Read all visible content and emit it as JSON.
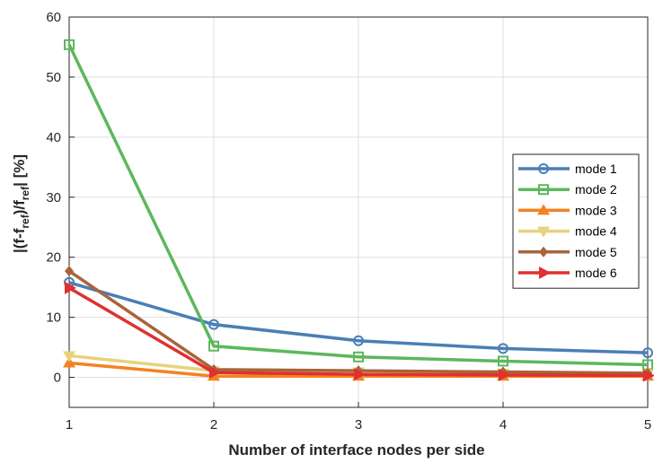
{
  "chart_data": {
    "type": "line",
    "title": "",
    "xlabel": "Number of interface nodes per side",
    "ylabel": "|(f-f_ref)/f_ref| [%]",
    "ylabel_parts": {
      "p1": "|(f-f",
      "s1": "ref",
      "p2": ")/f",
      "s2": "ref",
      "p3": "| [%]"
    },
    "x": [
      1,
      2,
      3,
      4,
      5
    ],
    "xlim": [
      1,
      5
    ],
    "ylim": [
      -5,
      60
    ],
    "xticks": [
      "1",
      "2",
      "3",
      "4",
      "5"
    ],
    "yticks": [
      "0",
      "10",
      "20",
      "30",
      "40",
      "50",
      "60"
    ],
    "grid": true,
    "legend_position": "right",
    "series": [
      {
        "name": "mode 1",
        "values": [
          15.8,
          8.8,
          6.1,
          4.8,
          4.1
        ],
        "color": "#4a7fb5",
        "marker": "circle"
      },
      {
        "name": "mode 2",
        "values": [
          55.4,
          5.2,
          3.4,
          2.7,
          2.1
        ],
        "color": "#5cb85c",
        "marker": "square"
      },
      {
        "name": "mode 3",
        "values": [
          2.4,
          0.2,
          0.2,
          0.2,
          0.2
        ],
        "color": "#f58220",
        "marker": "triangle-up"
      },
      {
        "name": "mode 4",
        "values": [
          3.6,
          1.1,
          0.9,
          0.7,
          0.6
        ],
        "color": "#e8d27a",
        "marker": "triangle-down"
      },
      {
        "name": "mode 5",
        "values": [
          17.7,
          1.3,
          1.1,
          0.9,
          0.7
        ],
        "color": "#a8643a",
        "marker": "diamond"
      },
      {
        "name": "mode 6",
        "values": [
          14.9,
          0.8,
          0.5,
          0.4,
          0.3
        ],
        "color": "#e03030",
        "marker": "triangle-right"
      }
    ]
  }
}
